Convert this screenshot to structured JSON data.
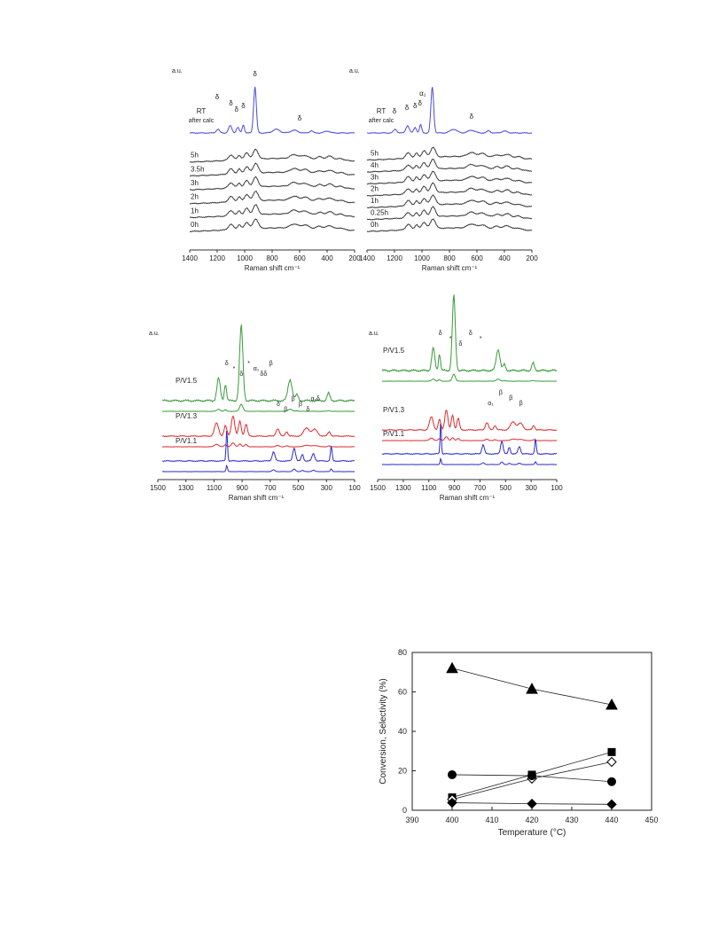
{
  "chart_data": [
    {
      "type": "line",
      "panel": "top-left",
      "y_unit_label": "a.u.",
      "xlabel": "Raman shift cm⁻¹",
      "xlim": [
        1400,
        200
      ],
      "x_ticks": [
        1400,
        1200,
        1000,
        800,
        600,
        400,
        200
      ],
      "series": [
        {
          "name": "RT after calc",
          "color": "#4a4adc",
          "kind": "rt"
        },
        {
          "name": "5h",
          "color": "#3a3a3a",
          "kind": "early"
        },
        {
          "name": "3.5h",
          "color": "#3a3a3a",
          "kind": "early"
        },
        {
          "name": "3h",
          "color": "#3a3a3a",
          "kind": "early"
        },
        {
          "name": "2h",
          "color": "#3a3a3a",
          "kind": "early"
        },
        {
          "name": "1h",
          "color": "#3a3a3a",
          "kind": "early"
        },
        {
          "name": "0h",
          "color": "#3a3a3a",
          "kind": "early"
        }
      ],
      "annotations": [
        "δ",
        "δ",
        "δ",
        "δ",
        "δ",
        "δ"
      ]
    },
    {
      "type": "line",
      "panel": "top-right",
      "y_unit_label": "a.u.",
      "xlabel": "Raman shift cm⁻¹",
      "xlim": [
        1400,
        200
      ],
      "x_ticks": [
        1400,
        1200,
        1000,
        800,
        600,
        400,
        200
      ],
      "series": [
        {
          "name": "RT after calc",
          "color": "#4a4adc",
          "kind": "rt"
        },
        {
          "name": "5h",
          "color": "#3a3a3a",
          "kind": "early"
        },
        {
          "name": "4h",
          "color": "#3a3a3a",
          "kind": "early"
        },
        {
          "name": "3h",
          "color": "#3a3a3a",
          "kind": "early"
        },
        {
          "name": "2h",
          "color": "#3a3a3a",
          "kind": "early"
        },
        {
          "name": "1h",
          "color": "#3a3a3a",
          "kind": "early"
        },
        {
          "name": "0.25h",
          "color": "#3a3a3a",
          "kind": "early"
        },
        {
          "name": "0h",
          "color": "#3a3a3a",
          "kind": "early"
        }
      ],
      "annotations": [
        "δ",
        "δ",
        "δ",
        "δ",
        "α₁",
        "δ"
      ]
    },
    {
      "type": "line",
      "panel": "middle-left",
      "y_unit_label": "a.u.",
      "xlabel": "Raman shift cm⁻¹",
      "xlim": [
        1500,
        100
      ],
      "x_ticks": [
        1500,
        1300,
        1100,
        900,
        700,
        500,
        300,
        100
      ],
      "series": [
        {
          "name": "P/V1.5",
          "color": "#3a9a3a",
          "kind": "delta",
          "count": 2
        },
        {
          "name": "P/V1.3",
          "color": "#e02a2a",
          "kind": "beta",
          "count": 2
        },
        {
          "name": "P/V1.1",
          "color": "#2a2ad0",
          "kind": "alpha",
          "count": 2
        }
      ],
      "annotations": [
        "δ",
        "*",
        "δ",
        "*",
        "α₁",
        "δδ",
        "β",
        "δ",
        "β",
        "β",
        "β",
        "δ",
        "α₁δ"
      ]
    },
    {
      "type": "line",
      "panel": "middle-right",
      "y_unit_label": "a.u.",
      "xlabel": "Raman shift cm⁻¹",
      "xlim": [
        1500,
        100
      ],
      "x_ticks": [
        1500,
        1300,
        1100,
        900,
        700,
        500,
        300,
        100
      ],
      "series": [
        {
          "name": "P/V1.5",
          "color": "#3a9a3a",
          "kind": "delta",
          "count": 2
        },
        {
          "name": "P/V1.3",
          "color": "#e02a2a",
          "kind": "beta",
          "count": 2
        },
        {
          "name": "P/V1.1",
          "color": "#2a2ad0",
          "kind": "alpha",
          "count": 2
        }
      ],
      "annotations": [
        "δ",
        "*",
        "δ",
        "δ",
        "*",
        "α₁",
        "β",
        "β",
        "β"
      ]
    },
    {
      "type": "scatter",
      "panel": "bottom",
      "xlabel": "Temperature (°C)",
      "ylabel": "Conversion, Selectivity (%)",
      "xlim": [
        390,
        450
      ],
      "ylim": [
        0,
        80
      ],
      "x_ticks": [
        390,
        400,
        410,
        420,
        430,
        440,
        450
      ],
      "y_ticks": [
        0,
        20,
        40,
        60,
        80
      ],
      "series": [
        {
          "marker": "triangle",
          "filled": true,
          "x": [
            400,
            420,
            440
          ],
          "y": [
            72,
            61.5,
            53.5
          ]
        },
        {
          "marker": "square",
          "filled": true,
          "x": [
            400,
            420,
            440
          ],
          "y": [
            6.5,
            18,
            29.5
          ]
        },
        {
          "marker": "diamond",
          "filled": false,
          "x": [
            400,
            420,
            440
          ],
          "y": [
            5.5,
            16,
            24.5
          ]
        },
        {
          "marker": "circle",
          "filled": true,
          "x": [
            400,
            420,
            440
          ],
          "y": [
            18,
            17.5,
            14.5
          ]
        },
        {
          "marker": "diamond",
          "filled": true,
          "x": [
            400,
            420,
            440
          ],
          "y": [
            3.8,
            3.3,
            3
          ]
        }
      ]
    }
  ]
}
